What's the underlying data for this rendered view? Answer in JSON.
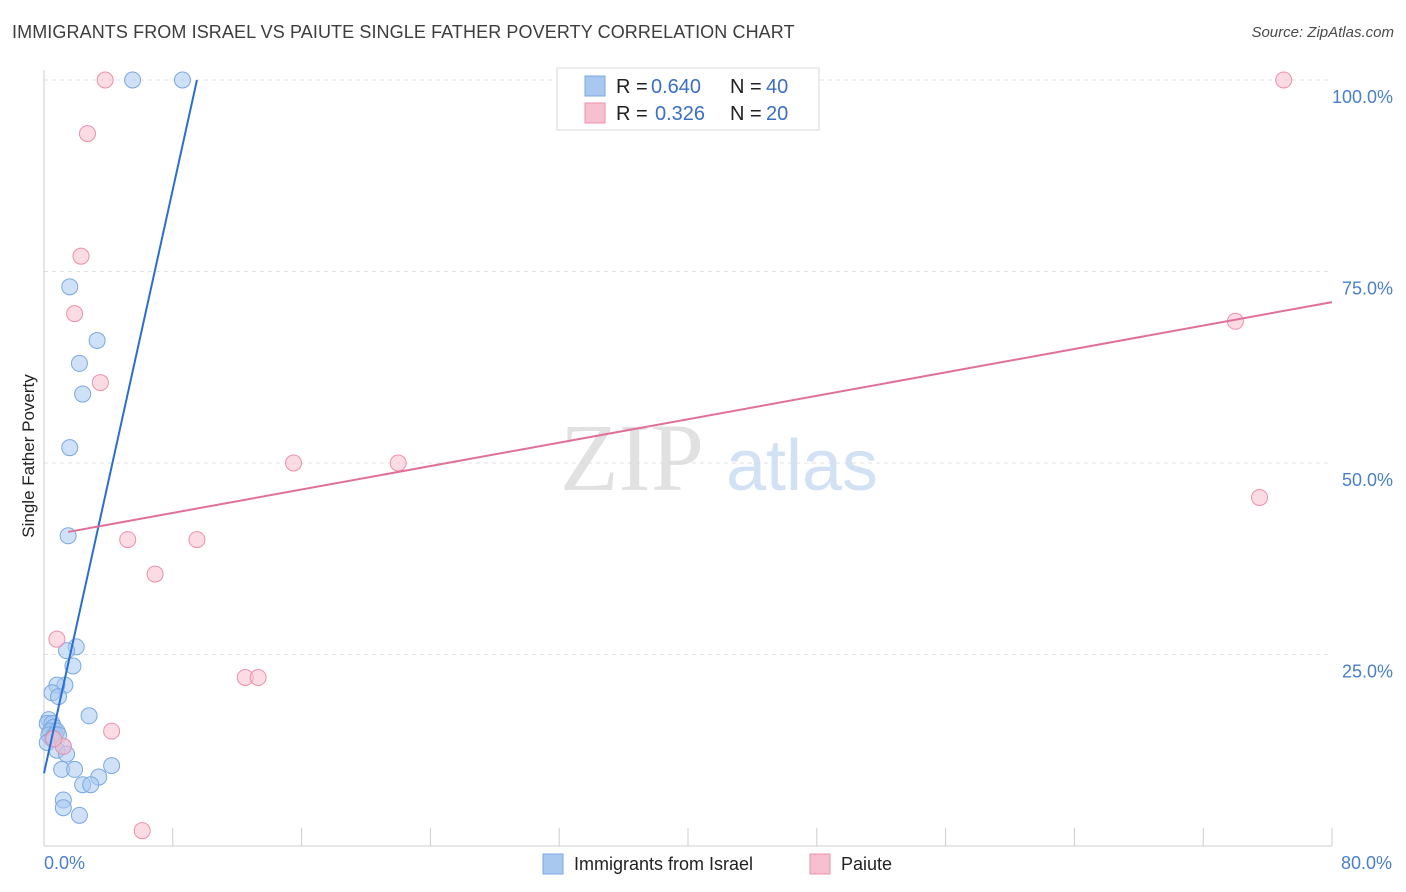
{
  "title": "IMMIGRANTS FROM ISRAEL VS PAIUTE SINGLE FATHER POVERTY CORRELATION CHART",
  "source": "Source: ZipAtlas.com",
  "chart_data": {
    "type": "scatter",
    "title": "IMMIGRANTS FROM ISRAEL VS PAIUTE SINGLE FATHER POVERTY CORRELATION CHART",
    "xlabel": "",
    "ylabel": "Single Father Poverty",
    "xlim": [
      0,
      80
    ],
    "ylim": [
      0,
      100
    ],
    "x_tick_labels": [
      "0.0%",
      "80.0%"
    ],
    "y_ticks": [
      25,
      50,
      75,
      100
    ],
    "y_tick_labels": [
      "25.0%",
      "50.0%",
      "75.0%",
      "100.0%"
    ],
    "grid": true,
    "watermark": {
      "part1": "ZIP",
      "part2": "atlas"
    },
    "legend_top": [
      {
        "r_label": "R =",
        "r_value": "0.640",
        "n_label": "N =",
        "n_value": "40"
      },
      {
        "r_label": "R =",
        "r_value": "0.326",
        "n_label": "N =",
        "n_value": "20"
      }
    ],
    "series": [
      {
        "name": "Immigrants from Israel",
        "color": "#a8c8f0",
        "edge": "#7aa8e0",
        "line_color": "#2a6fd0",
        "trend": {
          "x": [
            0,
            9.5
          ],
          "y": [
            9.5,
            100
          ]
        },
        "points": [
          [
            5.5,
            100
          ],
          [
            8.6,
            100
          ],
          [
            1.6,
            73
          ],
          [
            3.3,
            66
          ],
          [
            2.2,
            63
          ],
          [
            2.4,
            59
          ],
          [
            1.6,
            52
          ],
          [
            1.5,
            40.5
          ],
          [
            2.0,
            26
          ],
          [
            1.4,
            25.5
          ],
          [
            1.8,
            23.5
          ],
          [
            1.3,
            21
          ],
          [
            0.8,
            21
          ],
          [
            0.5,
            20
          ],
          [
            0.9,
            19.5
          ],
          [
            2.8,
            17
          ],
          [
            0.3,
            16.5
          ],
          [
            0.2,
            16
          ],
          [
            0.5,
            16
          ],
          [
            0.6,
            15.5
          ],
          [
            0.4,
            15
          ],
          [
            0.8,
            15
          ],
          [
            0.3,
            14.5
          ],
          [
            0.7,
            14.5
          ],
          [
            0.9,
            14.5
          ],
          [
            0.5,
            14
          ],
          [
            0.2,
            13.5
          ],
          [
            1.2,
            13
          ],
          [
            0.8,
            12.5
          ],
          [
            1.4,
            12
          ],
          [
            1.1,
            10
          ],
          [
            1.9,
            10
          ],
          [
            4.2,
            10.5
          ],
          [
            3.4,
            9
          ],
          [
            2.4,
            8
          ],
          [
            2.9,
            8
          ],
          [
            1.2,
            6
          ],
          [
            1.2,
            5
          ],
          [
            2.2,
            4
          ],
          [
            0.6,
            14
          ]
        ]
      },
      {
        "name": "Paiute",
        "color": "#f7c0d0",
        "edge": "#ec90aa",
        "line_color": "#e0709a",
        "trend": {
          "x": [
            1.5,
            80
          ],
          "y": [
            41,
            71
          ]
        },
        "points": [
          [
            3.8,
            100
          ],
          [
            77.0,
            100
          ],
          [
            2.7,
            93
          ],
          [
            2.3,
            77
          ],
          [
            1.9,
            69.5
          ],
          [
            3.5,
            60.5
          ],
          [
            15.5,
            50
          ],
          [
            22.0,
            50
          ],
          [
            74.0,
            68.5
          ],
          [
            75.5,
            45.5
          ],
          [
            5.2,
            40
          ],
          [
            9.5,
            40
          ],
          [
            6.9,
            35.5
          ],
          [
            0.8,
            27
          ],
          [
            12.5,
            22
          ],
          [
            13.3,
            22
          ],
          [
            4.2,
            15
          ],
          [
            1.2,
            13
          ],
          [
            0.6,
            14
          ],
          [
            6.1,
            2
          ]
        ]
      }
    ]
  }
}
